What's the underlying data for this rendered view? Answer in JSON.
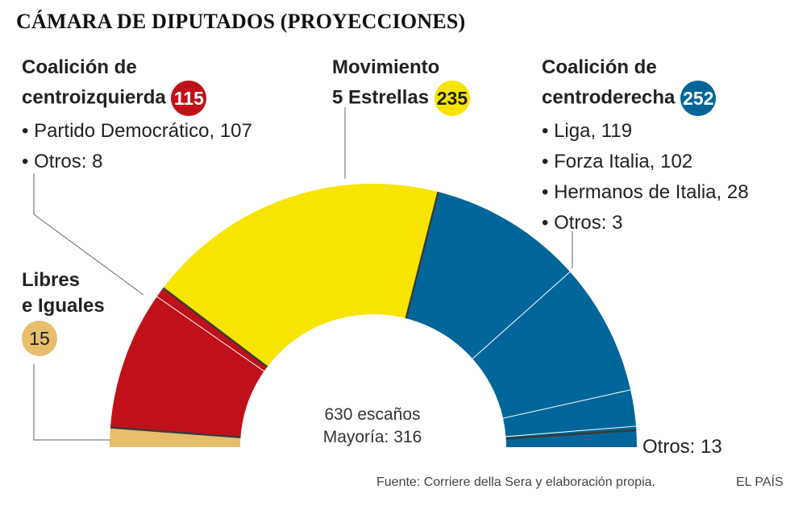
{
  "title": "CÁMARA DE DIPUTADOS (PROYECCIONES)",
  "chart_data": {
    "type": "pie",
    "subtype": "hemicycle",
    "total_seats": 630,
    "majority": 316,
    "center_text": [
      "630 escaños",
      "Mayoría: 316"
    ],
    "slices": [
      {
        "name": "Libres e Iguales",
        "value": 15,
        "color": "#e6be6c",
        "group": "libres"
      },
      {
        "name": "Partido Democrático",
        "value": 107,
        "color": "#c0111a",
        "group": "centroizquierda"
      },
      {
        "name": "Otros centroizquierda",
        "value": 8,
        "color": "#c0111a",
        "group": "centroizquierda"
      },
      {
        "name": "Movimiento 5 Estrellas",
        "value": 235,
        "color": "#f7e400",
        "group": "m5s"
      },
      {
        "name": "Liga",
        "value": 119,
        "color": "#00669a",
        "group": "centroderecha"
      },
      {
        "name": "Forza Italia",
        "value": 102,
        "color": "#00669a",
        "group": "centroderecha"
      },
      {
        "name": "Hermanos de Italia",
        "value": 28,
        "color": "#00669a",
        "group": "centroderecha"
      },
      {
        "name": "Otros centroderecha",
        "value": 3,
        "color": "#00669a",
        "group": "centroderecha"
      },
      {
        "name": "Otros",
        "value": 13,
        "color": "#00669a",
        "group": "otros"
      }
    ]
  },
  "groups": {
    "centroizquierda": {
      "line1": "Coalición de",
      "line2": "centroizquierda",
      "total": "115",
      "color": "#c0111a",
      "items": [
        "• Partido Democrático, 107",
        "• Otros: 8"
      ]
    },
    "m5s": {
      "line1": "Movimiento",
      "line2": "5 Estrellas",
      "total": "235",
      "color": "#f7e400"
    },
    "centroderecha": {
      "line1": "Coalición de",
      "line2": "centroderecha",
      "total": "252",
      "color": "#00669a",
      "items": [
        "• Liga, 119",
        "• Forza Italia, 102",
        "• Hermanos de Italia, 28",
        "• Otros: 3"
      ]
    },
    "libres": {
      "line1": "Libres",
      "line2": "e Iguales",
      "total": "15",
      "color": "#e6be6c"
    },
    "otros": {
      "label": "Otros: 13"
    }
  },
  "footer": {
    "source": "Fuente: Corriere della Sera y elaboración propia.",
    "brand": "EL PAÍS"
  }
}
